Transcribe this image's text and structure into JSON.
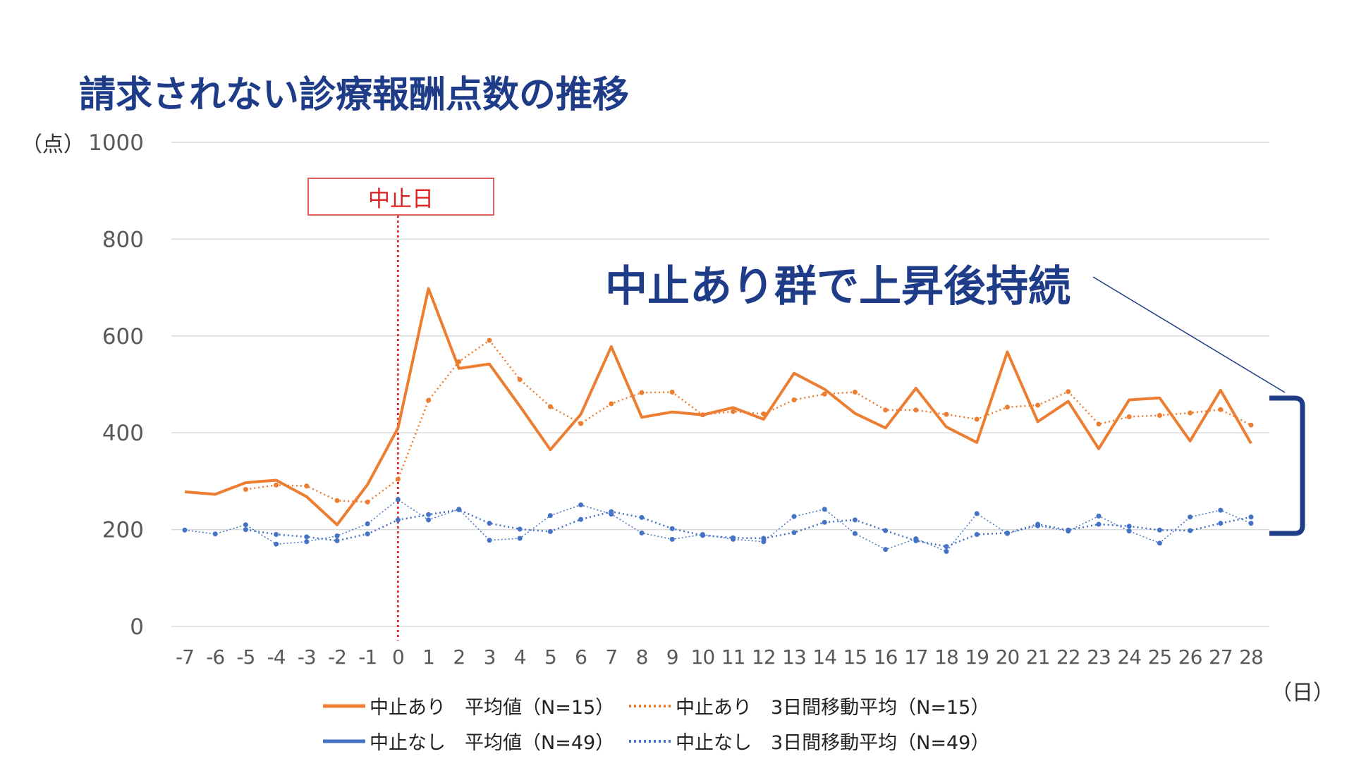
{
  "title": "請求されない診療報酬点数の推移",
  "annotation": "中止あり群で上昇後持続",
  "y_unit": "（点）",
  "x_unit": "（日）",
  "marker_label": "中止日",
  "colors": {
    "orange": "#ed7d31",
    "blue": "#4472c4",
    "title": "#1f3c88",
    "marker": "#e8303a",
    "grid": "#d9d9d9"
  },
  "legend": {
    "stop_avg": "中止あり　平均値（N=15）",
    "stop_ma": "中止あり　3日間移動平均（N=15）",
    "nostop_avg": "中止なし　平均値（N=49）",
    "nostop_ma": "中止なし　3日間移動平均（N=49）"
  },
  "chart_data": {
    "type": "line",
    "title": "請求されない診療報酬点数の推移",
    "xlabel": "（日）",
    "ylabel": "（点）",
    "ylim": [
      0,
      1000
    ],
    "yticks": [
      0,
      200,
      400,
      600,
      800,
      1000
    ],
    "x": [
      -7,
      -6,
      -5,
      -4,
      -3,
      -2,
      -1,
      0,
      1,
      2,
      3,
      4,
      5,
      6,
      7,
      8,
      9,
      10,
      11,
      12,
      13,
      14,
      15,
      16,
      17,
      18,
      19,
      20,
      21,
      22,
      23,
      24,
      25,
      26,
      27,
      28
    ],
    "marker_x": 0,
    "series": [
      {
        "name": "中止あり　平均値（N=15）",
        "key": "stop_avg",
        "color": "#ed7d31",
        "style": "solid",
        "values": [
          278,
          273,
          297,
          302,
          268,
          210,
          293,
          410,
          698,
          533,
          542,
          455,
          365,
          438,
          578,
          432,
          443,
          437,
          452,
          428,
          523,
          490,
          440,
          410,
          492,
          412,
          380,
          567,
          423,
          465,
          367,
          468,
          472,
          383,
          488,
          378
        ]
      },
      {
        "name": "中止あり　3日間移動平均（N=15）",
        "key": "stop_ma",
        "color": "#ed7d31",
        "style": "dotted",
        "values": [
          null,
          null,
          283,
          292,
          290,
          260,
          257,
          304,
          467,
          547,
          591,
          510,
          454,
          419,
          460,
          483,
          484,
          437,
          444,
          439,
          468,
          480,
          484,
          447,
          447,
          438,
          428,
          453,
          457,
          485,
          418,
          433,
          436,
          441,
          448,
          416
        ]
      },
      {
        "name": "中止なし　平均値（N=49）",
        "key": "nostop_avg",
        "color": "#4472c4",
        "style": "solid",
        "values": [
          199,
          191,
          210,
          170,
          175,
          187,
          212,
          262,
          220,
          242,
          178,
          182,
          229,
          251,
          232,
          193,
          180,
          190,
          180,
          175,
          227,
          242,
          192,
          159,
          181,
          155,
          233,
          192,
          208,
          197,
          228,
          197,
          172,
          226,
          240,
          213
        ]
      },
      {
        "name": "中止なし　3日間移動平均（N=49）",
        "key": "nostop_ma",
        "color": "#4472c4",
        "style": "dotted",
        "values": [
          null,
          null,
          200,
          190,
          185,
          177,
          191,
          220,
          231,
          241,
          213,
          201,
          196,
          221,
          237,
          225,
          202,
          188,
          183,
          182,
          194,
          215,
          220,
          198,
          177,
          165,
          190,
          193,
          211,
          199,
          211,
          207,
          199,
          198,
          213,
          226
        ]
      }
    ]
  }
}
